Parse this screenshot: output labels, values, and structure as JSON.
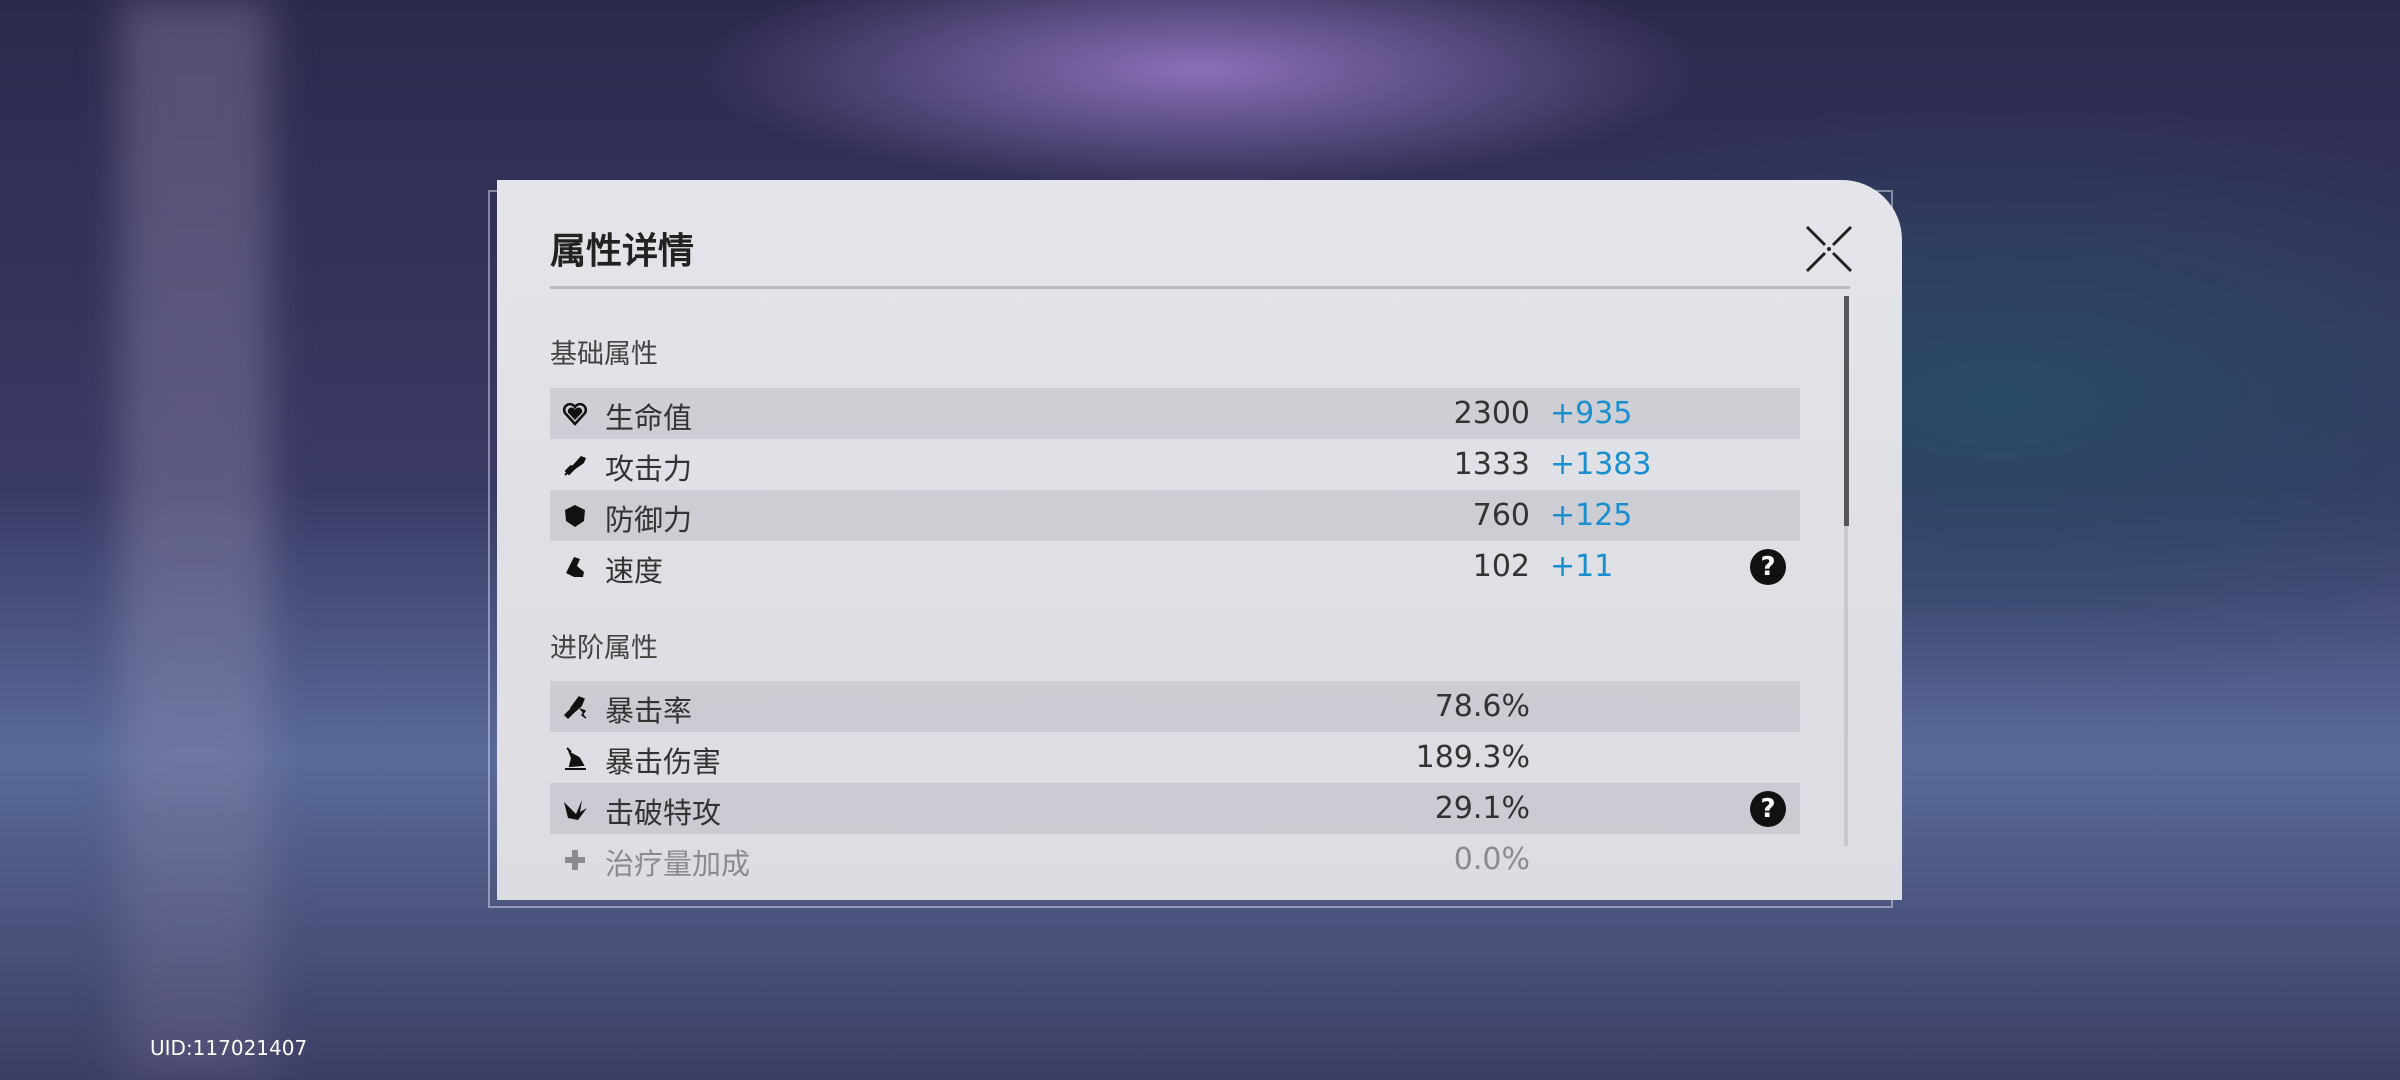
{
  "dialog": {
    "title": "属性详情",
    "close_icon": "close-x-icon"
  },
  "basic": {
    "heading": "基础属性",
    "rows": [
      {
        "icon": "heart-icon",
        "name": "生命值",
        "value": "2300",
        "bonus": "+935"
      },
      {
        "icon": "sword-icon",
        "name": "攻击力",
        "value": "1333",
        "bonus": "+1383"
      },
      {
        "icon": "shield-icon",
        "name": "防御力",
        "value": "760",
        "bonus": "+125"
      },
      {
        "icon": "boot-icon",
        "name": "速度",
        "value": "102",
        "bonus": "+11",
        "help": "?"
      }
    ]
  },
  "advanced": {
    "heading": "进阶属性",
    "rows": [
      {
        "icon": "crit-rate-icon",
        "name": "暴击率",
        "value": "78.6%"
      },
      {
        "icon": "crit-dmg-icon",
        "name": "暴击伤害",
        "value": "189.3%"
      },
      {
        "icon": "break-effect-icon",
        "name": "击破特攻",
        "value": "29.1%",
        "help": "?"
      },
      {
        "icon": "healing-icon",
        "name": "治疗量加成",
        "value": "0.0%"
      }
    ]
  },
  "footer": {
    "uid": "UID:117021407"
  },
  "colors": {
    "bonus": "#1a8fd0",
    "panel": "#e0e1e6"
  }
}
